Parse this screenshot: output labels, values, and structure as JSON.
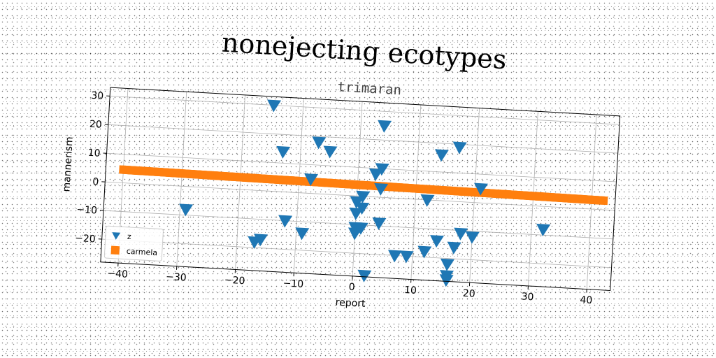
{
  "chart_data": {
    "type": "scatter",
    "title": "nonejecting ecotypes",
    "subtitle": "trimaran",
    "xlabel": "report",
    "ylabel": "mannerism",
    "xlim": [
      -43,
      44
    ],
    "ylim": [
      -28,
      33
    ],
    "xticks": [
      -40,
      -30,
      -20,
      -10,
      0,
      10,
      20,
      30,
      40
    ],
    "yticks": [
      -20,
      -10,
      0,
      10,
      20,
      30
    ],
    "grid": true,
    "legend_position": "lower-left",
    "series": [
      {
        "name": "z",
        "marker": "triangle-down",
        "color": "#1f77b4",
        "points": [
          {
            "x": -15,
            "y": 30
          },
          {
            "x": 4,
            "y": 25
          },
          {
            "x": 17,
            "y": 19
          },
          {
            "x": -7,
            "y": 18
          },
          {
            "x": 14,
            "y": 16
          },
          {
            "x": -5,
            "y": 15
          },
          {
            "x": -13,
            "y": 14
          },
          {
            "x": 4,
            "y": 10
          },
          {
            "x": 3,
            "y": 8
          },
          {
            "x": -8,
            "y": 5
          },
          {
            "x": 21,
            "y": 5
          },
          {
            "x": 4,
            "y": 3
          },
          {
            "x": 1,
            "y": 0
          },
          {
            "x": 12,
            "y": 0
          },
          {
            "x": 0,
            "y": -2
          },
          {
            "x": 1,
            "y": -4
          },
          {
            "x": 0,
            "y": -6
          },
          {
            "x": 4,
            "y": -9
          },
          {
            "x": -29,
            "y": -8
          },
          {
            "x": 32,
            "y": -8
          },
          {
            "x": -12,
            "y": -10
          },
          {
            "x": 0,
            "y": -11
          },
          {
            "x": 1,
            "y": -11
          },
          {
            "x": 18,
            "y": -11
          },
          {
            "x": 20,
            "y": -12
          },
          {
            "x": 14,
            "y": -14
          },
          {
            "x": -9,
            "y": -14
          },
          {
            "x": 0,
            "y": -13
          },
          {
            "x": 17,
            "y": -16
          },
          {
            "x": -16,
            "y": -17
          },
          {
            "x": -17,
            "y": -18
          },
          {
            "x": 12,
            "y": -18
          },
          {
            "x": 7,
            "y": -20
          },
          {
            "x": 9,
            "y": -20
          },
          {
            "x": 16,
            "y": -22
          },
          {
            "x": 16,
            "y": -26
          },
          {
            "x": 2,
            "y": -31
          },
          {
            "x": 16,
            "y": -31
          }
        ]
      },
      {
        "name": "carmela",
        "marker": "square",
        "color": "#ff7f0e",
        "x_range": [
          -40,
          42
        ],
        "y_start": 4.6,
        "y_end": 3.2,
        "count": 165
      }
    ]
  }
}
